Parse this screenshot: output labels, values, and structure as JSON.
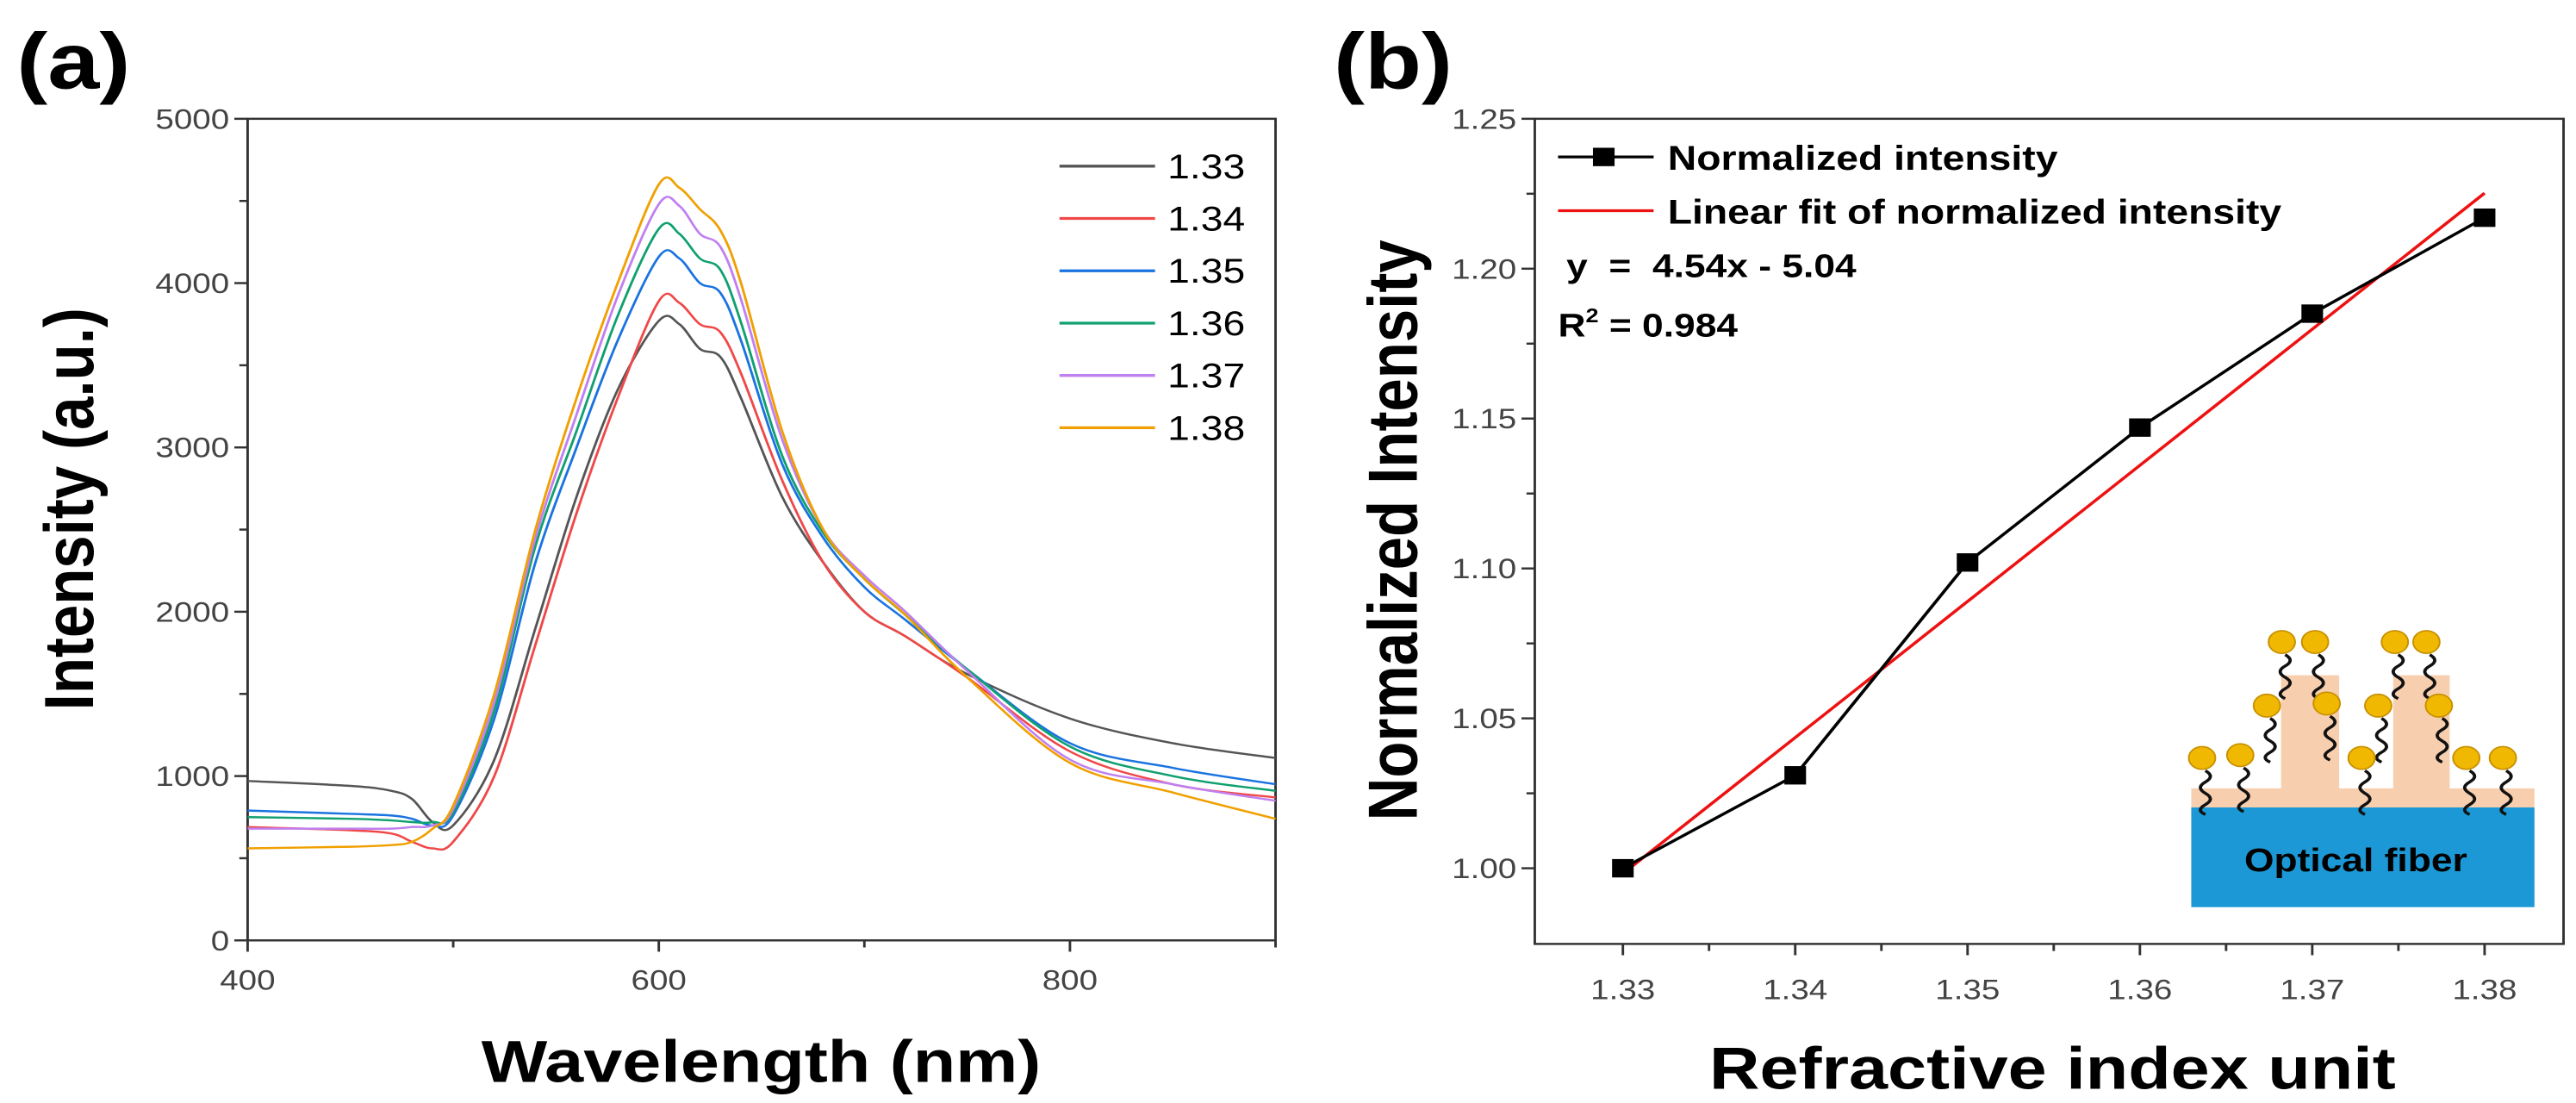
{
  "chart_data": [
    {
      "type": "line",
      "panel_label": "(a)",
      "xlabel": "Wavelength (nm)",
      "ylabel": "Intensity (a.u.)",
      "xlim": [
        400,
        900
      ],
      "ylim": [
        0,
        5000
      ],
      "xticks": [
        400,
        600,
        800
      ],
      "yticks": [
        0,
        1000,
        2000,
        3000,
        4000,
        5000
      ],
      "grid": false,
      "legend_position": "top-right",
      "x": [
        400,
        450,
        470,
        480,
        490,
        500,
        520,
        540,
        560,
        580,
        600,
        610,
        620,
        630,
        640,
        660,
        680,
        700,
        720,
        750,
        800,
        850,
        900
      ],
      "series": [
        {
          "name": "1.33",
          "color": "#555555",
          "values": [
            970,
            940,
            910,
            860,
            720,
            700,
            1100,
            1900,
            2700,
            3350,
            3770,
            3750,
            3600,
            3550,
            3300,
            2700,
            2300,
            2000,
            1850,
            1620,
            1350,
            1200,
            1110
          ]
        },
        {
          "name": "1.34",
          "color": "#f04848",
          "values": [
            690,
            670,
            650,
            600,
            560,
            600,
            1000,
            1800,
            2600,
            3300,
            3890,
            3880,
            3750,
            3700,
            3450,
            2800,
            2300,
            2000,
            1850,
            1600,
            1150,
            950,
            870
          ]
        },
        {
          "name": "1.35",
          "color": "#1a73e0",
          "values": [
            790,
            770,
            760,
            740,
            700,
            760,
            1350,
            2300,
            3000,
            3650,
            4160,
            4150,
            4000,
            3940,
            3650,
            2900,
            2450,
            2150,
            1950,
            1650,
            1200,
            1050,
            950
          ]
        },
        {
          "name": "1.36",
          "color": "#10a070",
          "values": [
            750,
            740,
            730,
            720,
            720,
            780,
            1400,
            2400,
            3100,
            3800,
            4330,
            4300,
            4150,
            4080,
            3760,
            2950,
            2480,
            2200,
            1980,
            1650,
            1180,
            1000,
            910
          ]
        },
        {
          "name": "1.37",
          "color": "#c080f0",
          "values": [
            680,
            680,
            680,
            690,
            700,
            800,
            1450,
            2450,
            3200,
            3920,
            4480,
            4470,
            4300,
            4220,
            3900,
            3050,
            2500,
            2220,
            2000,
            1640,
            1100,
            950,
            850
          ]
        },
        {
          "name": "1.38",
          "color": "#f0a000",
          "values": [
            560,
            570,
            580,
            600,
            680,
            820,
            1500,
            2500,
            3300,
            4000,
            4600,
            4580,
            4450,
            4320,
            4000,
            3100,
            2500,
            2200,
            1980,
            1600,
            1080,
            900,
            740
          ]
        }
      ]
    },
    {
      "type": "line",
      "panel_label": "(b)",
      "xlabel": "Refractive index unit",
      "ylabel": "Normalized Intensity",
      "xlim": [
        1.325,
        1.3846
      ],
      "ylim": [
        0.975,
        1.25
      ],
      "xticks": [
        "1.33",
        "1.34",
        "1.35",
        "1.36",
        "1.37",
        "1.38"
      ],
      "yticks": [
        "1.00",
        "1.05",
        "1.10",
        "1.15",
        "1.20",
        "1.25"
      ],
      "grid": false,
      "legend_position": "top-left",
      "x": [
        1.33,
        1.34,
        1.35,
        1.36,
        1.37,
        1.38
      ],
      "series": [
        {
          "name": "Normalized intensity",
          "color": "#000000",
          "marker": "square",
          "values": [
            1.0,
            1.031,
            1.102,
            1.147,
            1.185,
            1.217
          ]
        },
        {
          "name": "Linear fit of normalized intensity",
          "color": "#ee1111",
          "fit": {
            "slope": 4.54,
            "intercept": -5.04
          }
        }
      ],
      "equation": "y  =  4.54x - 5.04",
      "r2_prefix": "R",
      "r2_sup": "2",
      "r2_value": " = 0.984",
      "inset": {
        "label": "Optical fiber",
        "fiber_color": "#1b98d5",
        "layer_color": "#f8cfae",
        "particle_color": "#f0b800"
      }
    }
  ]
}
